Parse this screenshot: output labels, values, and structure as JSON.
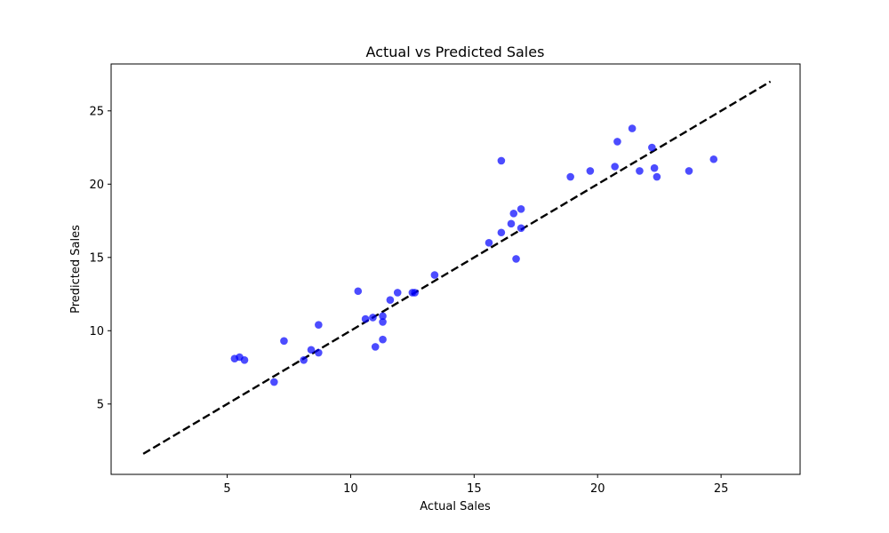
{
  "chart_data": {
    "type": "scatter",
    "title": "Actual vs Predicted Sales",
    "xlabel": "Actual Sales",
    "ylabel": "Predicted Sales",
    "xlim": [
      0.3,
      28.2
    ],
    "ylim": [
      0.2,
      28.2
    ],
    "xticks": [
      5,
      10,
      15,
      20,
      25
    ],
    "yticks": [
      5,
      10,
      15,
      20,
      25
    ],
    "grid": false,
    "colors": {
      "points": "#0000ff",
      "reference_line": "#000000"
    },
    "reference_line": {
      "style": "dashed",
      "x": [
        1.6,
        27.0
      ],
      "y": [
        1.6,
        27.0
      ]
    },
    "points": [
      {
        "x": 5.3,
        "y": 8.1
      },
      {
        "x": 5.5,
        "y": 8.2
      },
      {
        "x": 5.7,
        "y": 8.0
      },
      {
        "x": 6.9,
        "y": 6.5
      },
      {
        "x": 7.3,
        "y": 9.3
      },
      {
        "x": 8.1,
        "y": 8.0
      },
      {
        "x": 8.4,
        "y": 8.7
      },
      {
        "x": 8.7,
        "y": 8.5
      },
      {
        "x": 8.7,
        "y": 10.4
      },
      {
        "x": 10.3,
        "y": 12.7
      },
      {
        "x": 10.6,
        "y": 10.8
      },
      {
        "x": 10.9,
        "y": 10.9
      },
      {
        "x": 11.0,
        "y": 8.9
      },
      {
        "x": 11.3,
        "y": 11.0
      },
      {
        "x": 11.3,
        "y": 10.6
      },
      {
        "x": 11.3,
        "y": 9.4
      },
      {
        "x": 11.6,
        "y": 12.1
      },
      {
        "x": 11.9,
        "y": 12.6
      },
      {
        "x": 12.5,
        "y": 12.6
      },
      {
        "x": 12.6,
        "y": 12.6
      },
      {
        "x": 13.4,
        "y": 13.8
      },
      {
        "x": 15.6,
        "y": 16.0
      },
      {
        "x": 16.1,
        "y": 16.7
      },
      {
        "x": 16.1,
        "y": 21.6
      },
      {
        "x": 16.5,
        "y": 17.3
      },
      {
        "x": 16.6,
        "y": 18.0
      },
      {
        "x": 16.7,
        "y": 14.9
      },
      {
        "x": 16.9,
        "y": 18.3
      },
      {
        "x": 16.9,
        "y": 17.0
      },
      {
        "x": 18.9,
        "y": 20.5
      },
      {
        "x": 19.7,
        "y": 20.9
      },
      {
        "x": 20.7,
        "y": 21.2
      },
      {
        "x": 20.8,
        "y": 22.9
      },
      {
        "x": 21.4,
        "y": 23.8
      },
      {
        "x": 21.7,
        "y": 20.9
      },
      {
        "x": 22.2,
        "y": 22.5
      },
      {
        "x": 22.3,
        "y": 21.1
      },
      {
        "x": 22.4,
        "y": 20.5
      },
      {
        "x": 23.7,
        "y": 20.9
      },
      {
        "x": 24.7,
        "y": 21.7
      }
    ]
  }
}
